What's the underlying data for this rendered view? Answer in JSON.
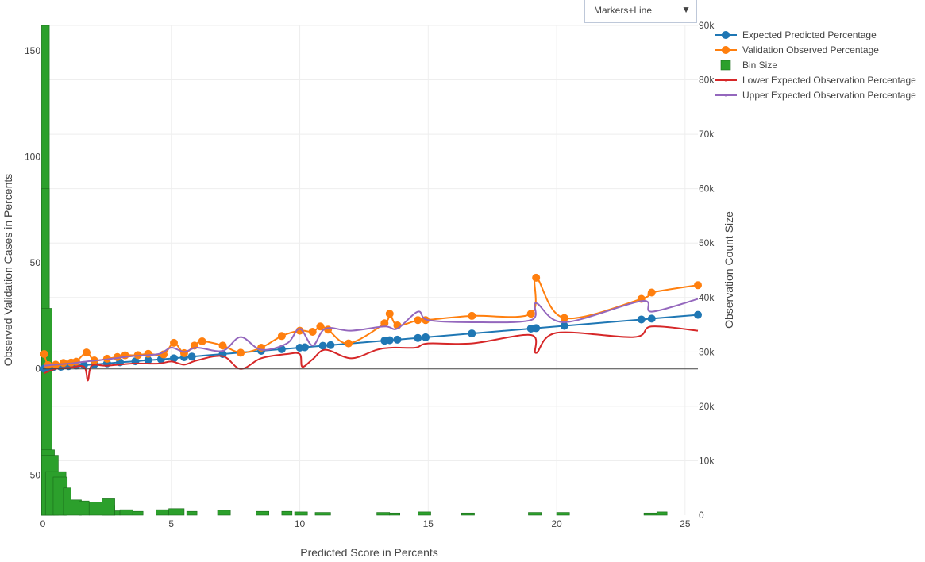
{
  "mode_selector": {
    "value": "Markers+Line",
    "arrow": "▼"
  },
  "chart_data": {
    "type": "line",
    "xlabel": "Predicted Score in Percents",
    "ylabel": "Observed Validation Cases in Percents",
    "y2label": "Observation Count Size",
    "xlim": [
      0,
      25.5
    ],
    "ylim": [
      -69,
      162
    ],
    "y2lim": [
      0,
      90000
    ],
    "x_ticks": [
      "0",
      "5",
      "10",
      "15",
      "20",
      "25"
    ],
    "y_ticks": [
      "−50",
      "0",
      "50",
      "100",
      "150"
    ],
    "y2_ticks": [
      "0",
      "10k",
      "20k",
      "30k",
      "40k",
      "50k",
      "60k",
      "70k",
      "80k",
      "90k"
    ],
    "legend_position": "top-right",
    "series": [
      {
        "name": "Expected Predicted Percentage",
        "color": "#1f77b4",
        "mode": "lines+markers",
        "x": [
          0.05,
          0.1,
          0.2,
          0.4,
          0.7,
          1.0,
          1.3,
          1.6,
          2.0,
          2.5,
          3.0,
          3.6,
          4.1,
          4.6,
          5.1,
          5.5,
          5.8,
          7.0,
          8.5,
          9.3,
          10.0,
          10.2,
          10.9,
          11.2,
          13.3,
          13.5,
          13.8,
          14.6,
          14.9,
          16.7,
          19.0,
          19.2,
          20.3,
          23.3,
          23.7,
          25.5
        ],
        "y": [
          0.1,
          0.5,
          0.7,
          0.9,
          1.0,
          1.3,
          1.6,
          1.8,
          2.1,
          2.6,
          3.1,
          3.6,
          4.1,
          4.5,
          5.0,
          5.5,
          5.8,
          7.0,
          8.5,
          9.3,
          10.0,
          10.2,
          10.9,
          11.2,
          13.3,
          13.5,
          13.8,
          14.6,
          14.9,
          16.7,
          19.0,
          19.2,
          20.3,
          23.3,
          23.7,
          25.5
        ]
      },
      {
        "name": "Validation Observed Percentage",
        "color": "#ff7f0e",
        "mode": "lines+markers",
        "x": [
          0.05,
          0.2,
          0.5,
          0.8,
          1.1,
          1.3,
          1.7,
          2.0,
          2.5,
          2.9,
          3.2,
          3.7,
          4.1,
          4.7,
          5.1,
          5.5,
          5.9,
          6.2,
          7.0,
          7.7,
          8.5,
          9.3,
          10.0,
          10.5,
          10.8,
          11.1,
          11.9,
          13.3,
          13.5,
          13.8,
          14.6,
          14.9,
          16.7,
          19.0,
          19.2,
          20.3,
          23.3,
          23.7,
          25.5
        ],
        "y": [
          7.0,
          1.8,
          2.0,
          2.8,
          3.0,
          3.4,
          7.7,
          4.0,
          4.8,
          5.6,
          6.4,
          6.5,
          7.1,
          6.8,
          12.3,
          7.4,
          11.0,
          13.0,
          11.0,
          7.6,
          10.0,
          15.5,
          18.0,
          17.5,
          20.0,
          18.5,
          12.0,
          21.5,
          26.0,
          20.5,
          23.0,
          23.0,
          25.0,
          26.0,
          43.0,
          24.0,
          33.0,
          36.0,
          39.5
        ]
      },
      {
        "name": "Lower Expected Observation Percentage",
        "color": "#d62728",
        "mode": "lines",
        "x": [
          0.05,
          0.5,
          1.0,
          1.6,
          1.75,
          1.9,
          2.5,
          3.5,
          4.5,
          5.0,
          5.5,
          6.0,
          7.0,
          7.7,
          8.5,
          9.5,
          10.0,
          10.1,
          10.5,
          11.0,
          12.0,
          13.0,
          13.6,
          14.5,
          15.0,
          16.7,
          19.0,
          19.2,
          20.0,
          23.0,
          23.7,
          25.5
        ],
        "y": [
          -2.0,
          0.0,
          0.5,
          1.0,
          -5.5,
          1.5,
          1.5,
          2.5,
          2.5,
          3.5,
          2.0,
          4.0,
          6.0,
          0.0,
          5.0,
          7.0,
          7.0,
          1.0,
          4.5,
          9.0,
          5.0,
          9.0,
          10.0,
          10.0,
          12.0,
          12.0,
          16.0,
          7.5,
          17.0,
          15.0,
          20.0,
          18.0
        ]
      },
      {
        "name": "Upper Expected Observation Percentage",
        "color": "#9467bd",
        "mode": "lines",
        "x": [
          0.05,
          0.5,
          1.0,
          1.7,
          2.5,
          3.5,
          4.5,
          5.0,
          5.5,
          6.0,
          7.0,
          7.7,
          8.5,
          9.5,
          10.0,
          10.5,
          11.0,
          12.0,
          13.3,
          13.8,
          14.6,
          15.0,
          16.7,
          19.0,
          19.2,
          20.3,
          23.3,
          23.7,
          25.5
        ],
        "y": [
          1.5,
          2.0,
          2.5,
          3.5,
          4.5,
          6.0,
          7.0,
          10.0,
          8.0,
          10.0,
          8.5,
          15.0,
          9.0,
          12.0,
          19.0,
          11.0,
          19.0,
          18.0,
          20.0,
          19.0,
          27.0,
          23.0,
          22.0,
          23.0,
          31.0,
          22.0,
          32.0,
          27.0,
          33.0
        ]
      }
    ],
    "bins": {
      "name": "Bin Size",
      "color": "#2ca02c",
      "axis": "y2",
      "items": [
        {
          "x0": -0.05,
          "x1": 0.25,
          "count": 90000
        },
        {
          "x0": -0.05,
          "x1": 0.25,
          "count": 60000
        },
        {
          "x0": -0.05,
          "x1": 0.35,
          "count": 38000
        },
        {
          "x0": -0.05,
          "x1": 0.45,
          "count": 12000
        },
        {
          "x0": -0.05,
          "x1": 0.6,
          "count": 11000
        },
        {
          "x0": 0.1,
          "x1": 0.9,
          "count": 8000
        },
        {
          "x0": 0.4,
          "x1": 0.95,
          "count": 7000
        },
        {
          "x0": 0.8,
          "x1": 1.1,
          "count": 5000
        },
        {
          "x0": 1.1,
          "x1": 1.5,
          "count": 2800
        },
        {
          "x0": 1.4,
          "x1": 1.8,
          "count": 2600
        },
        {
          "x0": 1.8,
          "x1": 2.3,
          "count": 2400
        },
        {
          "x0": 2.3,
          "x1": 2.8,
          "count": 1800
        },
        {
          "x0": 2.3,
          "x1": 2.8,
          "count": 3000
        },
        {
          "x0": 2.8,
          "x1": 3.0,
          "count": 800
        },
        {
          "x0": 3.0,
          "x1": 3.5,
          "count": 1000
        },
        {
          "x0": 3.5,
          "x1": 3.9,
          "count": 700
        },
        {
          "x0": 4.4,
          "x1": 4.9,
          "count": 1000
        },
        {
          "x0": 4.9,
          "x1": 5.5,
          "count": 1200
        },
        {
          "x0": 5.6,
          "x1": 6.0,
          "count": 700
        },
        {
          "x0": 6.8,
          "x1": 7.3,
          "count": 900
        },
        {
          "x0": 8.3,
          "x1": 8.8,
          "count": 700
        },
        {
          "x0": 9.3,
          "x1": 9.7,
          "count": 700
        },
        {
          "x0": 9.8,
          "x1": 10.3,
          "count": 600
        },
        {
          "x0": 10.6,
          "x1": 11.2,
          "count": 500
        },
        {
          "x0": 13.0,
          "x1": 13.5,
          "count": 500
        },
        {
          "x0": 13.5,
          "x1": 13.9,
          "count": 400
        },
        {
          "x0": 14.6,
          "x1": 15.1,
          "count": 600
        },
        {
          "x0": 16.3,
          "x1": 16.8,
          "count": 400
        },
        {
          "x0": 18.9,
          "x1": 19.4,
          "count": 500
        },
        {
          "x0": 20.0,
          "x1": 20.5,
          "count": 500
        },
        {
          "x0": 23.4,
          "x1": 23.9,
          "count": 400
        },
        {
          "x0": 23.9,
          "x1": 24.3,
          "count": 600
        }
      ]
    }
  }
}
